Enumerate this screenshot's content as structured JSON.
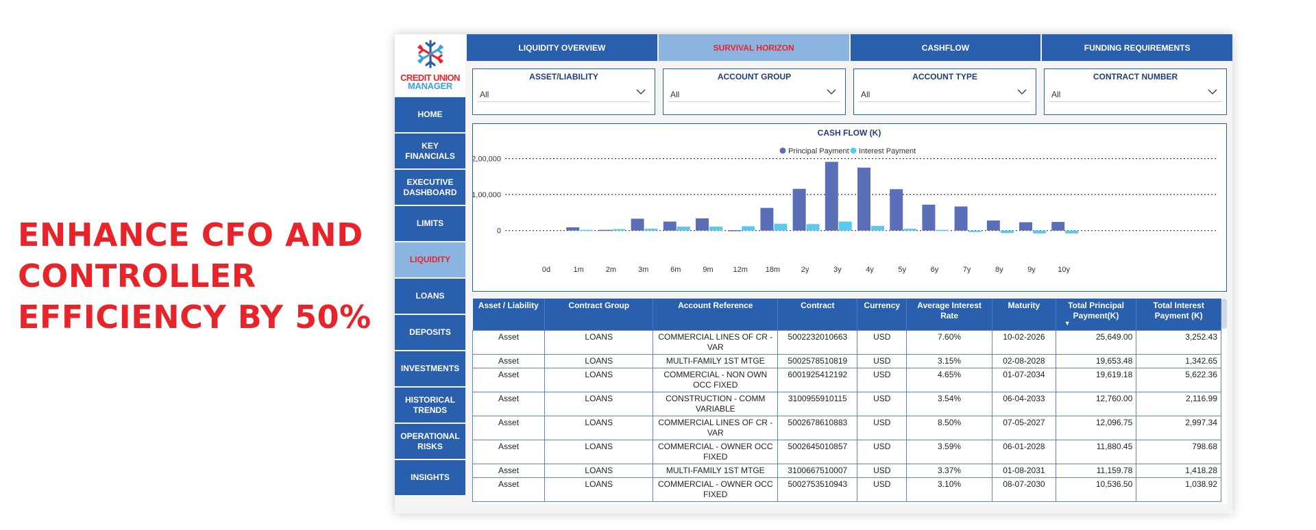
{
  "headline": {
    "line1": "ENHANCE CFO AND",
    "line2": "CONTROLLER",
    "line3": "EFFICIENCY BY 50%"
  },
  "brand": {
    "line1": "CREDIT UNION",
    "line2": "MANAGER"
  },
  "sidebar": {
    "items": [
      {
        "label": "HOME"
      },
      {
        "label": "KEY FINANCIALS"
      },
      {
        "label": "EXECUTIVE DASHBOARD"
      },
      {
        "label": "LIMITS"
      },
      {
        "label": "LIQUIDITY",
        "active": true
      },
      {
        "label": "LOANS"
      },
      {
        "label": "DEPOSITS"
      },
      {
        "label": "INVESTMENTS"
      },
      {
        "label": "HISTORICAL TRENDS"
      },
      {
        "label": "OPERATIONAL RISKS"
      },
      {
        "label": "INSIGHTS"
      }
    ]
  },
  "tabs": [
    {
      "label": "LIQUIDITY OVERVIEW"
    },
    {
      "label": "SURVIVAL HORIZON",
      "active": true
    },
    {
      "label": "CASHFLOW"
    },
    {
      "label": "FUNDING REQUIREMENTS"
    }
  ],
  "filters": [
    {
      "label": "ASSET/LIABILITY",
      "value": "All"
    },
    {
      "label": "ACCOUNT GROUP",
      "value": "All"
    },
    {
      "label": "ACCOUNT TYPE",
      "value": "All"
    },
    {
      "label": "CONTRACT NUMBER",
      "value": "All"
    }
  ],
  "chart_data": {
    "type": "bar",
    "title": "CASH FLOW (K)",
    "legend_position": "top-center",
    "grid": true,
    "ylim": [
      -12000,
      205000
    ],
    "yticks": [
      0,
      100000,
      200000
    ],
    "ytick_labels": [
      "0",
      "1,00,000",
      "2,00,000"
    ],
    "categories": [
      "0d",
      "1m",
      "2m",
      "3m",
      "6m",
      "9m",
      "12m",
      "18m",
      "2y",
      "3y",
      "4y",
      "5y",
      "6y",
      "7y",
      "8y",
      "9y",
      "10y"
    ],
    "series": [
      {
        "name": "Principal Payment",
        "color": "#5b6fb8",
        "values": [
          0,
          9000,
          2000,
          33000,
          25000,
          34000,
          1000,
          63000,
          116000,
          191000,
          175000,
          115000,
          72000,
          67000,
          28000,
          23000,
          24000
        ]
      },
      {
        "name": "Interest Payment",
        "color": "#5bc8ee",
        "values": [
          0,
          2000,
          4000,
          5000,
          11000,
          11000,
          12000,
          19000,
          18000,
          25000,
          13000,
          5000,
          2000,
          -4000,
          -7000,
          -8000,
          -8000
        ]
      }
    ]
  },
  "table": {
    "headers": [
      "Asset / Liability",
      "Contract Group",
      "Account Reference",
      "Contract",
      "Currency",
      "Average Interest Rate",
      "Maturity",
      "Total Principal Payment(K)",
      "Total Interest Payment (K)"
    ],
    "rows": [
      [
        "Asset",
        "LOANS",
        "COMMERCIAL LINES OF CR - VAR",
        "5002232010663",
        "USD",
        "7.60%",
        "10-02-2026",
        "25,649.00",
        "3,252.43"
      ],
      [
        "Asset",
        "LOANS",
        "MULTI-FAMILY 1ST MTGE",
        "5002578510819",
        "USD",
        "3.15%",
        "02-08-2028",
        "19,653.48",
        "1,342.65"
      ],
      [
        "Asset",
        "LOANS",
        "COMMERCIAL - NON OWN OCC FIXED",
        "6001925412192",
        "USD",
        "4.65%",
        "01-07-2034",
        "19,619.18",
        "5,622.36"
      ],
      [
        "Asset",
        "LOANS",
        "CONSTRUCTION - COMM VARIABLE",
        "3100955910115",
        "USD",
        "3.54%",
        "06-04-2033",
        "12,760.00",
        "2,116.99"
      ],
      [
        "Asset",
        "LOANS",
        "COMMERCIAL LINES OF CR - VAR",
        "5002678610883",
        "USD",
        "8.50%",
        "07-05-2027",
        "12,096.75",
        "2,997.34"
      ],
      [
        "Asset",
        "LOANS",
        "COMMERCIAL - OWNER OCC FIXED",
        "5002645010857",
        "USD",
        "3.59%",
        "06-01-2028",
        "11,880.45",
        "798.68"
      ],
      [
        "Asset",
        "LOANS",
        "MULTI-FAMILY 1ST MTGE",
        "3100667510007",
        "USD",
        "3.37%",
        "01-08-2031",
        "11,159.78",
        "1,418.28"
      ],
      [
        "Asset",
        "LOANS",
        "COMMERCIAL - OWNER OCC FIXED",
        "5002753510943",
        "USD",
        "3.10%",
        "08-07-2030",
        "10,536.50",
        "1,038.92"
      ]
    ]
  }
}
